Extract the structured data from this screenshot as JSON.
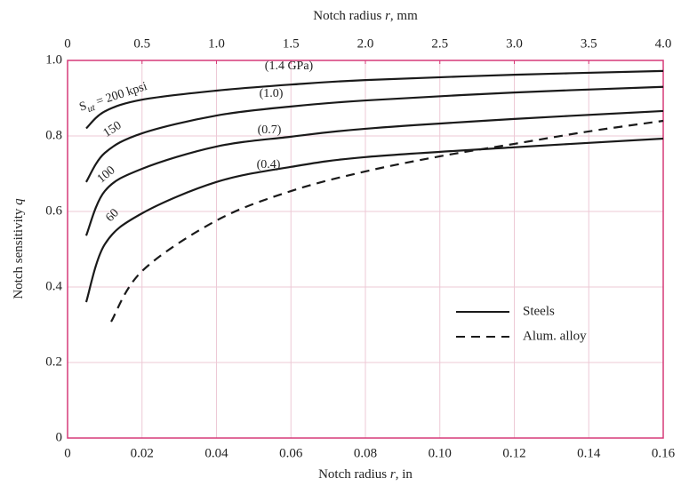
{
  "chart_data": {
    "type": "line",
    "xlabel": [
      "Notch radius ",
      "r",
      ", in"
    ],
    "x2label": [
      "Notch radius ",
      "r",
      ", mm"
    ],
    "ylabel": [
      "Notch sensitivity ",
      "q"
    ],
    "xlim": [
      0,
      0.16
    ],
    "xticks": [
      0,
      0.02,
      0.04,
      0.06,
      0.08,
      {
        "value": 0.1,
        "label": "0.10"
      },
      0.12,
      0.14,
      0.16
    ],
    "x2lim": [
      0,
      4
    ],
    "x2ticks": [
      0,
      0.5,
      {
        "value": 1,
        "label": "1.0"
      },
      1.5,
      {
        "value": 2,
        "label": "2.0"
      },
      2.5,
      {
        "value": 3,
        "label": "3.0"
      },
      3.5,
      {
        "value": 4,
        "label": "4.0"
      }
    ],
    "ylim": [
      0,
      1
    ],
    "yticks": [
      0,
      0.2,
      0.4,
      0.6,
      0.8,
      {
        "value": 1,
        "label": "1.0"
      }
    ],
    "grid": true,
    "frame_color": "#d63a78",
    "grid_color": "#edc9d6",
    "series": [
      {
        "label_symbol": "S",
        "label_subscript": "ut",
        "label": " = 200 kpsi",
        "si_label": "(1.4 GPa)",
        "color": "#1a1a1a",
        "dash": "solid",
        "x": [
          0.005,
          0.01,
          0.02,
          0.04,
          0.06,
          0.08,
          0.12,
          0.16
        ],
        "values": [
          0.82,
          0.865,
          0.896,
          0.92,
          0.936,
          0.948,
          0.962,
          0.972
        ]
      },
      {
        "label": "150",
        "si_label": "(1.0)",
        "color": "#1a1a1a",
        "dash": "solid",
        "x": [
          0.005,
          0.01,
          0.02,
          0.04,
          0.06,
          0.08,
          0.12,
          0.16
        ],
        "values": [
          0.678,
          0.755,
          0.807,
          0.854,
          0.878,
          0.894,
          0.915,
          0.93
        ]
      },
      {
        "label": "100",
        "si_label": "(0.7)",
        "color": "#1a1a1a",
        "dash": "solid",
        "x": [
          0.005,
          0.01,
          0.02,
          0.04,
          0.06,
          0.08,
          0.12,
          0.16
        ],
        "values": [
          0.536,
          0.654,
          0.713,
          0.772,
          0.798,
          0.819,
          0.845,
          0.866
        ]
      },
      {
        "label": "60",
        "si_label": "(0.4)",
        "color": "#1a1a1a",
        "dash": "solid",
        "x": [
          0.005,
          0.01,
          0.02,
          0.04,
          0.06,
          0.08,
          0.12,
          0.16
        ],
        "values": [
          0.36,
          0.513,
          0.595,
          0.678,
          0.718,
          0.744,
          0.77,
          0.793
        ]
      },
      {
        "color": "#1a1a1a",
        "dash": "dashed",
        "x": [
          0.0117,
          0.02,
          0.04,
          0.06,
          0.08,
          0.1,
          0.12,
          0.14,
          0.16
        ],
        "values": [
          0.308,
          0.442,
          0.576,
          0.654,
          0.706,
          0.746,
          0.779,
          0.812,
          0.84
        ]
      }
    ],
    "legend": [
      {
        "label": "Steels",
        "dash": "solid"
      },
      {
        "label": "Alum. alloy",
        "dash": "dashed"
      }
    ]
  }
}
